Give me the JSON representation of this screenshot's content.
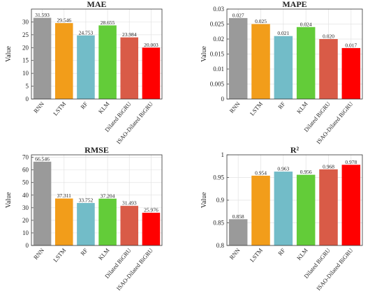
{
  "colors": [
    "#9a9a9a",
    "#f29d1a",
    "#72bcc8",
    "#63cc39",
    "#d95b47",
    "#ff0000"
  ],
  "chart_data": [
    {
      "type": "bar",
      "title": "MAE",
      "ylabel": "Value",
      "categories": [
        "RNN",
        "LSTM",
        "RF",
        "KLM",
        "Dilated BiGRU",
        "ISAO-Dilated BiGRU"
      ],
      "values": [
        31.593,
        29.546,
        24.753,
        28.655,
        23.984,
        20.003
      ],
      "value_labels": [
        "31.593",
        "29.546",
        "24.753",
        "28.655",
        "23.984",
        "20.003"
      ],
      "ylim": [
        0,
        35
      ],
      "yticks": [
        0,
        5,
        10,
        15,
        20,
        25,
        30
      ],
      "ytick_labels": [
        "0",
        "5",
        "10",
        "15",
        "20",
        "25",
        "30"
      ],
      "grid": true
    },
    {
      "type": "bar",
      "title": "MAPE",
      "ylabel": "Value",
      "categories": [
        "RNN",
        "LSTM",
        "RF",
        "KLM",
        "Dilated BiGRU",
        "ISAO-Dilated BiGRU"
      ],
      "values": [
        0.027,
        0.025,
        0.021,
        0.024,
        0.02,
        0.017
      ],
      "value_labels": [
        "0.027",
        "0.025",
        "0.021",
        "0.024",
        "0.020",
        "0.017"
      ],
      "ylim": [
        0,
        0.03
      ],
      "yticks": [
        0,
        0.005,
        0.01,
        0.015,
        0.02,
        0.025,
        0.03
      ],
      "ytick_labels": [
        "0",
        "0.005",
        "0.01",
        "0.015",
        "0.02",
        "0.025",
        "0.03"
      ],
      "grid": true
    },
    {
      "type": "bar",
      "title": "RMSE",
      "ylabel": "Value",
      "categories": [
        "RNN",
        "LSTM",
        "RF",
        "KLM",
        "Dilated BiGRU",
        "ISAO-Dilated BiGRU"
      ],
      "values": [
        66.546,
        37.311,
        33.752,
        37.204,
        31.493,
        25.976
      ],
      "value_labels": [
        "66.546",
        "37.311",
        "33.752",
        "37.204",
        "31.493",
        "25.976"
      ],
      "ylim": [
        0,
        72
      ],
      "yticks": [
        0,
        10,
        20,
        30,
        40,
        50,
        60,
        70
      ],
      "ytick_labels": [
        "0",
        "10",
        "20",
        "30",
        "40",
        "50",
        "60",
        "70"
      ],
      "grid": true
    },
    {
      "type": "bar",
      "title": "R²",
      "ylabel": "Value",
      "categories": [
        "RNN",
        "LSTM",
        "RF",
        "KLM",
        "Dilated BiGRU",
        "ISAO-Dilated BiGRU"
      ],
      "values": [
        0.858,
        0.954,
        0.963,
        0.956,
        0.968,
        0.978
      ],
      "value_labels": [
        "0.858",
        "0.954",
        "0.963",
        "0.956",
        "0.968",
        "0.978"
      ],
      "ylim": [
        0.8,
        1.0
      ],
      "yticks": [
        0.8,
        0.85,
        0.9,
        0.95,
        1.0
      ],
      "ytick_labels": [
        "0.8",
        "0.85",
        "0.9",
        "0.95",
        "1"
      ],
      "grid": true
    }
  ]
}
